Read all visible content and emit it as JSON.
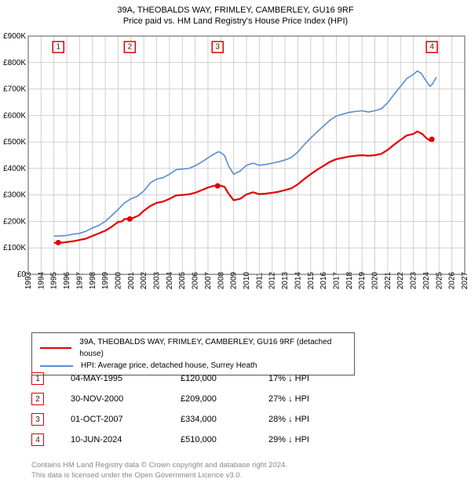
{
  "title_line1": "39A, THEOBALDS WAY, FRIMLEY, CAMBERLEY, GU16 9RF",
  "title_line2": "Price paid vs. HM Land Registry's House Price Index (HPI)",
  "chart": {
    "type": "line",
    "background_color": "#ffffff",
    "grid_color": "#d0d0d0",
    "axis_color": "#555555",
    "ylabel_font_size": 10,
    "xlabel_font_size": 10,
    "xlim": [
      1993,
      2027
    ],
    "ylim": [
      0,
      900000
    ],
    "ytick_step": 100000,
    "yticks": [
      "£0",
      "£100K",
      "£200K",
      "£300K",
      "£400K",
      "£500K",
      "£600K",
      "£700K",
      "£800K",
      "£900K"
    ],
    "xticks": [
      "1993",
      "1994",
      "1995",
      "1996",
      "1997",
      "1998",
      "1999",
      "2000",
      "2001",
      "2002",
      "2003",
      "2004",
      "2005",
      "2006",
      "2007",
      "2008",
      "2009",
      "2010",
      "2011",
      "2012",
      "2013",
      "2014",
      "2015",
      "2016",
      "2017",
      "2018",
      "2019",
      "2020",
      "2021",
      "2022",
      "2023",
      "2024",
      "2025",
      "2026",
      "2027"
    ],
    "series": [
      {
        "name": "39A, THEOBALDS WAY, FRIMLEY, CAMBERLEY, GU16 9RF (detached house)",
        "color": "#e00000",
        "line_width": 2.2,
        "data": [
          [
            1995.0,
            119000
          ],
          [
            1995.34,
            120000
          ],
          [
            1995.7,
            120000
          ],
          [
            1996.0,
            122000
          ],
          [
            1996.5,
            125000
          ],
          [
            1997.0,
            130000
          ],
          [
            1997.5,
            135000
          ],
          [
            1998.0,
            145000
          ],
          [
            1998.5,
            155000
          ],
          [
            1999.0,
            165000
          ],
          [
            1999.5,
            180000
          ],
          [
            2000.0,
            198000
          ],
          [
            2000.3,
            200000
          ],
          [
            2000.5,
            209000
          ],
          [
            2000.91,
            209000
          ],
          [
            2001.2,
            214000
          ],
          [
            2001.6,
            222000
          ],
          [
            2002.0,
            240000
          ],
          [
            2002.5,
            258000
          ],
          [
            2003.0,
            270000
          ],
          [
            2003.5,
            275000
          ],
          [
            2004.0,
            285000
          ],
          [
            2004.5,
            298000
          ],
          [
            2005.0,
            300000
          ],
          [
            2005.5,
            302000
          ],
          [
            2006.0,
            308000
          ],
          [
            2006.5,
            318000
          ],
          [
            2007.0,
            328000
          ],
          [
            2007.5,
            335000
          ],
          [
            2007.75,
            334000
          ],
          [
            2008.0,
            335000
          ],
          [
            2008.3,
            330000
          ],
          [
            2008.6,
            305000
          ],
          [
            2009.0,
            280000
          ],
          [
            2009.5,
            285000
          ],
          [
            2010.0,
            302000
          ],
          [
            2010.5,
            310000
          ],
          [
            2011.0,
            303000
          ],
          [
            2011.5,
            305000
          ],
          [
            2012.0,
            308000
          ],
          [
            2012.5,
            312000
          ],
          [
            2013.0,
            318000
          ],
          [
            2013.5,
            325000
          ],
          [
            2014.0,
            340000
          ],
          [
            2014.5,
            360000
          ],
          [
            2015.0,
            378000
          ],
          [
            2015.5,
            395000
          ],
          [
            2016.0,
            410000
          ],
          [
            2016.5,
            425000
          ],
          [
            2017.0,
            435000
          ],
          [
            2017.5,
            440000
          ],
          [
            2018.0,
            445000
          ],
          [
            2018.5,
            448000
          ],
          [
            2019.0,
            450000
          ],
          [
            2019.5,
            448000
          ],
          [
            2020.0,
            450000
          ],
          [
            2020.5,
            455000
          ],
          [
            2021.0,
            470000
          ],
          [
            2021.5,
            490000
          ],
          [
            2022.0,
            508000
          ],
          [
            2022.5,
            525000
          ],
          [
            2023.0,
            530000
          ],
          [
            2023.3,
            540000
          ],
          [
            2023.7,
            530000
          ],
          [
            2024.0,
            515000
          ],
          [
            2024.3,
            505000
          ],
          [
            2024.44,
            510000
          ]
        ]
      },
      {
        "name": "HPI: Average price, detached house, Surrey Heath",
        "color": "#5b8bd4",
        "line_width": 1.6,
        "data": [
          [
            1995.0,
            145000
          ],
          [
            1995.5,
            145000
          ],
          [
            1996.0,
            147000
          ],
          [
            1996.5,
            152000
          ],
          [
            1997.0,
            155000
          ],
          [
            1997.5,
            163000
          ],
          [
            1998.0,
            175000
          ],
          [
            1998.5,
            185000
          ],
          [
            1999.0,
            200000
          ],
          [
            1999.5,
            222000
          ],
          [
            2000.0,
            245000
          ],
          [
            2000.5,
            270000
          ],
          [
            2001.0,
            285000
          ],
          [
            2001.5,
            295000
          ],
          [
            2002.0,
            315000
          ],
          [
            2002.5,
            345000
          ],
          [
            2003.0,
            360000
          ],
          [
            2003.5,
            365000
          ],
          [
            2004.0,
            378000
          ],
          [
            2004.5,
            395000
          ],
          [
            2005.0,
            398000
          ],
          [
            2005.5,
            400000
          ],
          [
            2006.0,
            410000
          ],
          [
            2006.5,
            424000
          ],
          [
            2007.0,
            440000
          ],
          [
            2007.5,
            455000
          ],
          [
            2007.8,
            463000
          ],
          [
            2008.0,
            460000
          ],
          [
            2008.3,
            448000
          ],
          [
            2008.6,
            410000
          ],
          [
            2009.0,
            378000
          ],
          [
            2009.5,
            390000
          ],
          [
            2010.0,
            412000
          ],
          [
            2010.5,
            420000
          ],
          [
            2011.0,
            412000
          ],
          [
            2011.5,
            415000
          ],
          [
            2012.0,
            420000
          ],
          [
            2012.5,
            425000
          ],
          [
            2013.0,
            432000
          ],
          [
            2013.5,
            442000
          ],
          [
            2014.0,
            462000
          ],
          [
            2014.5,
            490000
          ],
          [
            2015.0,
            515000
          ],
          [
            2015.5,
            538000
          ],
          [
            2016.0,
            560000
          ],
          [
            2016.5,
            582000
          ],
          [
            2017.0,
            598000
          ],
          [
            2017.5,
            605000
          ],
          [
            2018.0,
            612000
          ],
          [
            2018.5,
            615000
          ],
          [
            2019.0,
            618000
          ],
          [
            2019.5,
            613000
          ],
          [
            2020.0,
            618000
          ],
          [
            2020.5,
            625000
          ],
          [
            2021.0,
            648000
          ],
          [
            2021.5,
            680000
          ],
          [
            2022.0,
            710000
          ],
          [
            2022.5,
            740000
          ],
          [
            2023.0,
            755000
          ],
          [
            2023.3,
            768000
          ],
          [
            2023.6,
            760000
          ],
          [
            2024.0,
            730000
          ],
          [
            2024.3,
            710000
          ],
          [
            2024.5,
            720000
          ],
          [
            2024.8,
            745000
          ]
        ]
      }
    ],
    "markers": [
      {
        "label": "1",
        "x": 1995.34,
        "y": 120000
      },
      {
        "label": "2",
        "x": 2000.91,
        "y": 209000
      },
      {
        "label": "3",
        "x": 2007.75,
        "y": 334000
      },
      {
        "label": "4",
        "x": 2024.44,
        "y": 510000
      }
    ]
  },
  "legend": {
    "items": [
      {
        "color": "#e00000",
        "width": 2.5,
        "label": "39A, THEOBALDS WAY, FRIMLEY, CAMBERLEY, GU16 9RF (detached house)"
      },
      {
        "color": "#5b8bd4",
        "width": 2,
        "label": "HPI: Average price, detached house, Surrey Heath"
      }
    ]
  },
  "table": {
    "rows": [
      {
        "marker": "1",
        "date": "04-MAY-1995",
        "price": "£120,000",
        "diff": "17% ↓ HPI"
      },
      {
        "marker": "2",
        "date": "30-NOV-2000",
        "price": "£209,000",
        "diff": "27% ↓ HPI"
      },
      {
        "marker": "3",
        "date": "01-OCT-2007",
        "price": "£334,000",
        "diff": "28% ↓ HPI"
      },
      {
        "marker": "4",
        "date": "10-JUN-2024",
        "price": "£510,000",
        "diff": "29% ↓ HPI"
      }
    ]
  },
  "footer_line1": "Contains HM Land Registry data © Crown copyright and database right 2024.",
  "footer_line2": "This data is licensed under the Open Government Licence v3.0."
}
